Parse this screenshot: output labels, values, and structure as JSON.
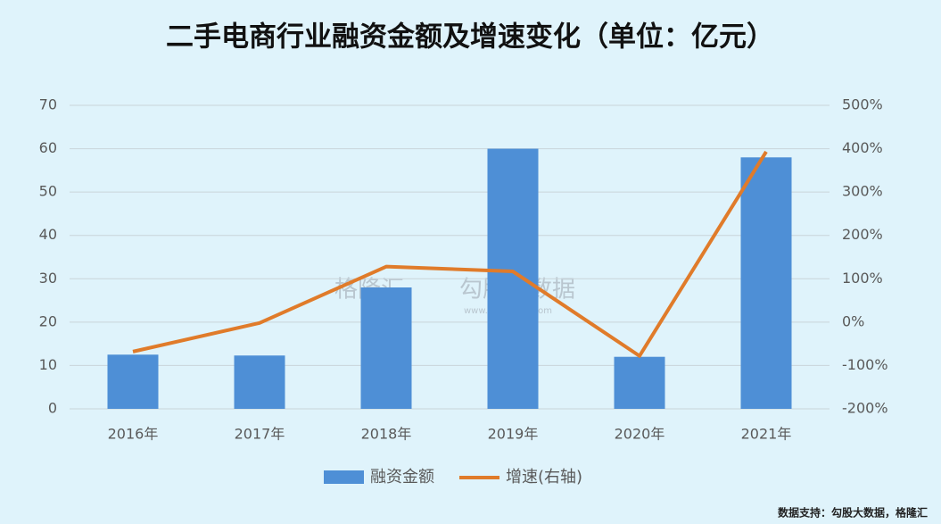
{
  "chart_data": {
    "type": "bar-line",
    "title": "二手电商行业融资金额及增速变化（单位：亿元）",
    "categories": [
      "2016年",
      "2017年",
      "2018年",
      "2019年",
      "2020年",
      "2021年"
    ],
    "series": [
      {
        "name": "融资金额",
        "type": "bar",
        "color": "#4e8fd6",
        "values": [
          12.5,
          12.3,
          28,
          60,
          12,
          58
        ]
      },
      {
        "name": "增速(右轴)",
        "type": "line",
        "axis": "y2",
        "color": "#e07b2a",
        "values": [
          -68,
          -2,
          128,
          117,
          -78,
          393
        ]
      }
    ],
    "ylim": [
      0,
      70
    ],
    "yticks": [
      0,
      10,
      20,
      30,
      40,
      50,
      60,
      70
    ],
    "y2lim": [
      -200,
      500
    ],
    "y2ticks": [
      {
        "value": -200,
        "label": "-200%"
      },
      {
        "value": -100,
        "label": "-100%"
      },
      {
        "value": 0,
        "label": "0%"
      },
      {
        "value": 100,
        "label": "100%"
      },
      {
        "value": 200,
        "label": "200%"
      },
      {
        "value": 300,
        "label": "300%"
      },
      {
        "value": 400,
        "label": "400%"
      },
      {
        "value": 500,
        "label": "500%"
      }
    ],
    "grid": true,
    "legend": "bottom",
    "source": "数据支持：勾股大数据，格隆汇",
    "watermark": [
      "格隆汇",
      "勾股大数据",
      "www.gogudata.com"
    ]
  }
}
